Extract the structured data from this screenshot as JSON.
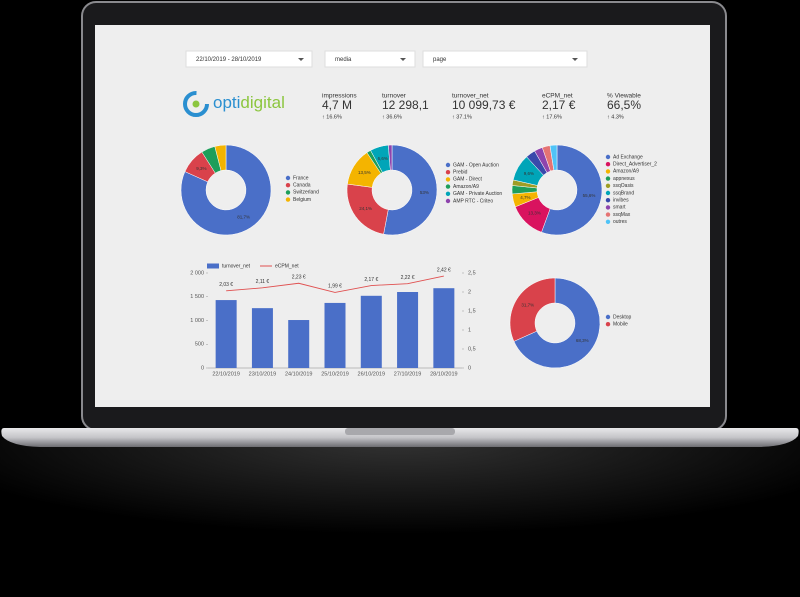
{
  "filters": [
    "22/10/2019 - 28/10/2019",
    "media",
    "page"
  ],
  "logo": {
    "part1": "opti",
    "part2": "digital"
  },
  "kpis": [
    {
      "label": "impressions",
      "value": "4,7 M",
      "delta": "↑ 16.6%"
    },
    {
      "label": "turnover",
      "value": "12 298,1",
      "delta": "↑ 36.6%"
    },
    {
      "label": "turnover_net",
      "value": "10 099,73 €",
      "delta": "↑ 37.1%"
    },
    {
      "label": "eCPM_net",
      "value": "2,17 €",
      "delta": "↑ 17.6%"
    },
    {
      "label": "% Viewable",
      "value": "66,5%",
      "delta": "↑ 4.3%"
    }
  ],
  "chart_data": [
    {
      "type": "pie",
      "categories": [
        "France",
        "Canada",
        "Switzerland",
        "Belgium"
      ],
      "values": [
        81.7,
        9.3,
        5,
        4
      ],
      "value_labels": [
        "81,7%",
        "9,3%",
        null,
        null
      ],
      "colors": [
        "#4a6fc8",
        "#d9424b",
        "#1e9e5a",
        "#f4b400"
      ]
    },
    {
      "type": "pie",
      "categories": [
        "GAM - Open Auction",
        "Prebid",
        "GAM - Direct",
        "Amazon/A9",
        "GAM - Private Auction",
        "AMP RTC - Criteo"
      ],
      "values": [
        53,
        24.1,
        13.5,
        1.5,
        6.6,
        1.3
      ],
      "value_labels": [
        "53%",
        "24,1%",
        "13,5%",
        null,
        "6,6%",
        null
      ],
      "colors": [
        "#4a6fc8",
        "#d9424b",
        "#f4b400",
        "#1e9e5a",
        "#00a5b8",
        "#8e44ad"
      ]
    },
    {
      "type": "pie",
      "categories": [
        "Ad Exchange",
        "Direct_Advertiser_2",
        "Amazon/A9",
        "appnexus",
        "ssqOasis",
        "ssqBrand",
        "invibes",
        "smart",
        "ssqMax",
        "outres"
      ],
      "values": [
        55.6,
        13.3,
        4.7,
        3,
        2,
        9.6,
        3.5,
        3,
        2.8,
        2.5
      ],
      "value_labels": [
        "55,6%",
        "13,3%",
        "4,7%",
        null,
        null,
        "9,6%",
        null,
        null,
        null,
        null
      ],
      "colors": [
        "#4a6fc8",
        "#d9135f",
        "#f4b400",
        "#1e9e5a",
        "#9e9d24",
        "#00a5b8",
        "#3949ab",
        "#8e44ad",
        "#e57373",
        "#4fc3f7"
      ]
    },
    {
      "type": "combo",
      "categories": [
        "22/10/2019",
        "23/10/2019",
        "24/10/2019",
        "25/10/2019",
        "26/10/2019",
        "27/10/2019",
        "28/10/2019"
      ],
      "series": [
        {
          "name": "turnover_net",
          "type": "bar",
          "color": "#4a6fc8",
          "values": [
            1430,
            1260,
            1010,
            1370,
            1520,
            1600,
            1680
          ]
        },
        {
          "name": "eCPM_net",
          "type": "line",
          "axis": "y2",
          "color": "#e05050",
          "values": [
            2.03,
            2.11,
            2.23,
            1.99,
            2.17,
            2.22,
            2.42
          ],
          "value_labels": [
            "2,03 €",
            "2,11 €",
            "2,23 €",
            "1,99 €",
            "2,17 €",
            "2,22 €",
            "2,42 €"
          ]
        }
      ],
      "ylim": [
        0,
        2000
      ],
      "yticks": [
        0,
        500,
        {
          "value": 1000,
          "label": "1 000"
        },
        {
          "value": 1500,
          "label": "1 500"
        },
        {
          "value": 2000,
          "label": "2 000"
        }
      ],
      "y2lim": [
        0,
        2.5
      ],
      "y2ticks": [
        0,
        {
          "value": 0.5,
          "label": "0,5"
        },
        1,
        {
          "value": 1.5,
          "label": "1,5"
        },
        2,
        {
          "value": 2.5,
          "label": "2,5"
        }
      ]
    },
    {
      "type": "pie",
      "categories": [
        "Desktop",
        "Mobile"
      ],
      "values": [
        68.3,
        31.7
      ],
      "value_labels": [
        "68,3%",
        "31,7%"
      ],
      "colors": [
        "#4a6fc8",
        "#d9424b"
      ]
    }
  ]
}
